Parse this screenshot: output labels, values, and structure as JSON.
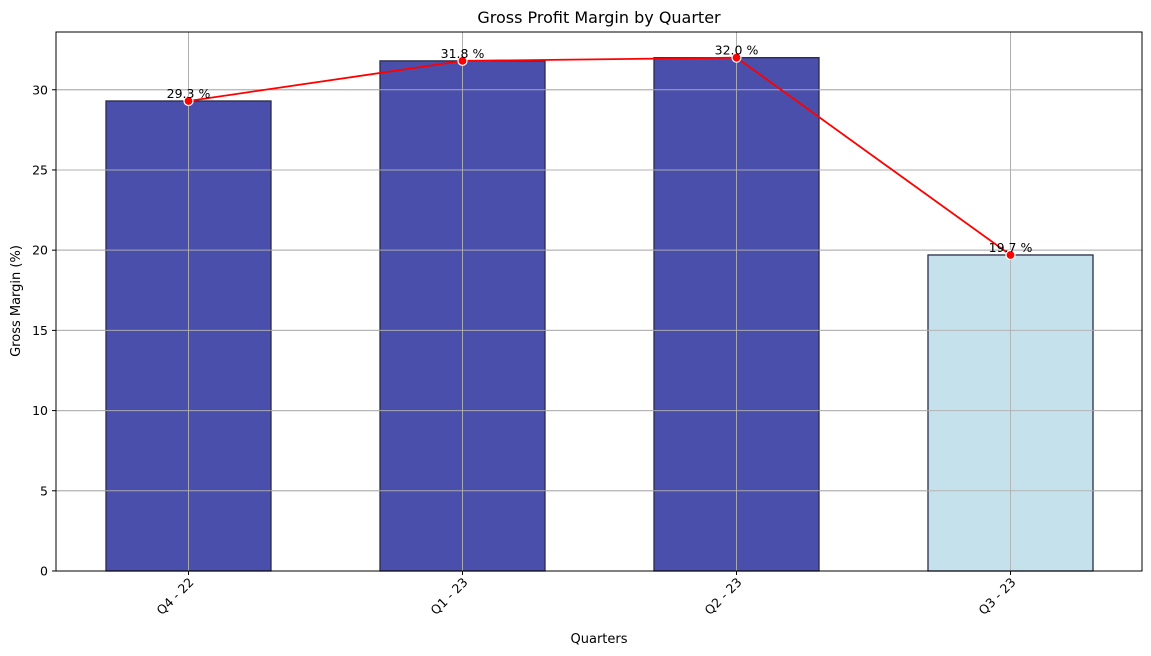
{
  "chart_data": {
    "type": "bar",
    "title": "Gross Profit Margin by Quarter",
    "xlabel": "Quarters",
    "ylabel": "Gross Margin (%)",
    "categories": [
      "Q4 - 22",
      "Q1 - 23",
      "Q2 - 23",
      "Q3 - 23"
    ],
    "values": [
      29.3,
      31.8,
      32.0,
      19.7
    ],
    "value_labels": [
      "29.3 %",
      "31.8 %",
      "32.0 %",
      "19.7 %"
    ],
    "bar_colors": [
      "#4b4fac",
      "#4b4fac",
      "#4b4fac",
      "#c5e2ec"
    ],
    "overlay_line": {
      "type": "line",
      "values": [
        29.3,
        31.8,
        32.0,
        19.7
      ],
      "color": "#ff0000",
      "marker": "circle"
    },
    "yticks": [
      0,
      5,
      10,
      15,
      20,
      25,
      30
    ],
    "ytick_labels": [
      "0",
      "5",
      "10",
      "15",
      "20",
      "25",
      "30"
    ],
    "ylim": [
      0,
      33.6
    ],
    "grid": true,
    "xtick_rotation": 45
  }
}
